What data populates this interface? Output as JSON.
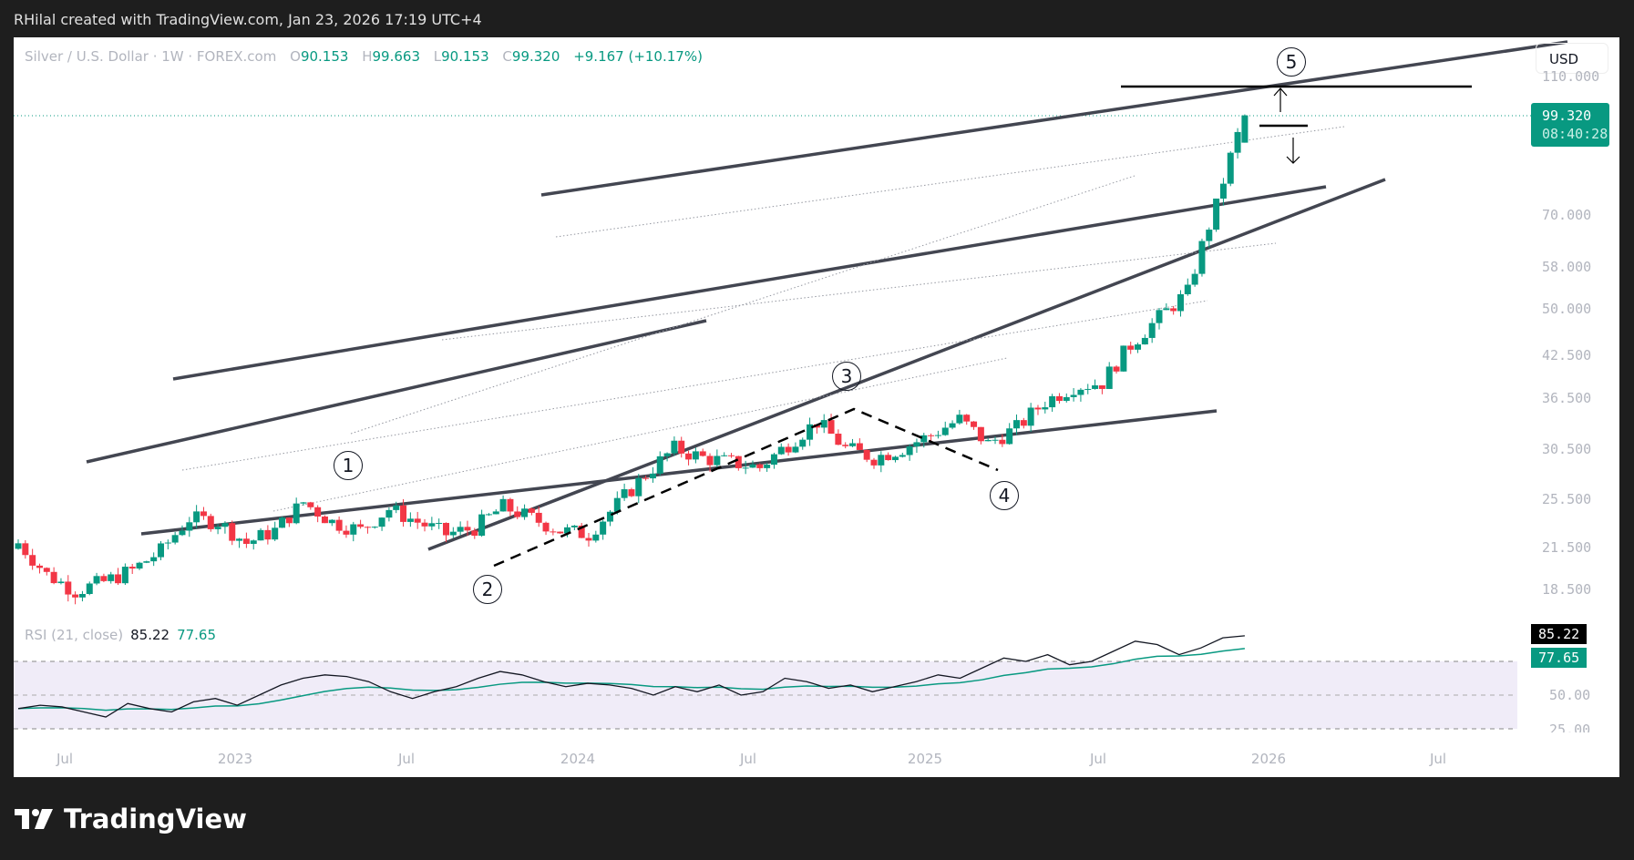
{
  "credit": "RHilal created with TradingView.com, Jan 23, 2026 17:19 UTC+4",
  "header": {
    "symbol": "Silver / U.S. Dollar · 1W · FOREX.com",
    "o_label": "O",
    "o": "90.153",
    "h_label": "H",
    "h": "99.663",
    "l_label": "L",
    "l": "90.153",
    "c_label": "C",
    "c": "99.320",
    "change": "+9.167 (+10.17%)"
  },
  "currency_button": "USD",
  "last_price": {
    "price": "99.320",
    "countdown": "08:40:28"
  },
  "price_axis": [
    "110.000",
    "70.000",
    "58.000",
    "50.000",
    "42.500",
    "36.500",
    "30.500",
    "25.500",
    "21.500",
    "18.500"
  ],
  "rsi": {
    "label": "RSI (21, close)",
    "value": "85.22",
    "ma": "77.65",
    "axis": [
      "50.00",
      "25.00"
    ]
  },
  "time_axis": [
    "Jul",
    "2023",
    "Jul",
    "2024",
    "Jul",
    "2025",
    "Jul",
    "2026",
    "Jul"
  ],
  "waves": [
    "1",
    "2",
    "3",
    "4",
    "5"
  ],
  "brand": "TradingView",
  "colors": {
    "up": "#089981",
    "down": "#f23645",
    "channel": "#434651",
    "rsi_line": "#131722",
    "rsi_ma": "#089981",
    "rsi_band": "#f0ecf8"
  },
  "chart_data": {
    "type": "candlestick",
    "title": "Silver / U.S. Dollar · 1W · FOREX.com",
    "xlabel": "",
    "ylabel": "USD",
    "scale": "log",
    "ylim": [
      16.5,
      118
    ],
    "x_ticks": [
      "Jul 2022",
      "2023",
      "Jul 2023",
      "2024",
      "Jul 2024",
      "2025",
      "Jul 2025",
      "2026",
      "Jul 2026"
    ],
    "y_ticks": [
      18.5,
      21.5,
      25.5,
      30.5,
      36.5,
      42.5,
      50,
      58,
      70,
      110
    ],
    "last_bar": {
      "open": 90.153,
      "high": 99.663,
      "low": 90.153,
      "close": 99.32,
      "change": 9.167,
      "change_pct": 10.17
    },
    "approx_weekly_closes": {
      "x": [
        "2022-06",
        "2022-07",
        "2022-08",
        "2022-09",
        "2022-10",
        "2022-11",
        "2022-12",
        "2023-01",
        "2023-02",
        "2023-03",
        "2023-04",
        "2023-05",
        "2023-06",
        "2023-07",
        "2023-08",
        "2023-09",
        "2023-10",
        "2023-11",
        "2023-12",
        "2024-01",
        "2024-02",
        "2024-03",
        "2024-04",
        "2024-05",
        "2024-06",
        "2024-07",
        "2024-08",
        "2024-09",
        "2024-10",
        "2024-11",
        "2024-12",
        "2025-01",
        "2025-02",
        "2025-03",
        "2025-04",
        "2025-05",
        "2025-06",
        "2025-07",
        "2025-08",
        "2025-09",
        "2025-10",
        "2025-11",
        "2025-12",
        "2026-01"
      ],
      "values": [
        21.8,
        19.5,
        18.4,
        19.0,
        19.8,
        21.2,
        23.8,
        23.5,
        21.8,
        22.8,
        25.2,
        23.5,
        22.8,
        24.6,
        23.5,
        22.5,
        23.0,
        24.8,
        23.8,
        22.8,
        22.5,
        25.0,
        27.8,
        30.5,
        29.5,
        29.0,
        28.5,
        31.0,
        33.5,
        30.5,
        29.5,
        30.5,
        32.0,
        33.8,
        31.0,
        32.8,
        36.0,
        38.0,
        38.5,
        44.0,
        48.5,
        53.0,
        72.0,
        99.32
      ]
    },
    "annotations": {
      "elliott_waves": [
        {
          "label": "1",
          "date": "2023-04",
          "price": 26.1
        },
        {
          "label": "2",
          "date": "2023-10",
          "price": 20.7
        },
        {
          "label": "3",
          "date": "2024-10",
          "price": 34.8
        },
        {
          "label": "4",
          "date": "2025-04",
          "price": 28.3
        },
        {
          "label": "5",
          "date": "2026-01",
          "price": 110.0
        }
      ],
      "channel": "ascending parallel channel set (5 solid lines with dotted midlines)",
      "target_line": 110.0,
      "support_marker": 92.0
    },
    "rsi": {
      "period": 21,
      "value": 85.22,
      "ma_value": 77.65,
      "bands": [
        30,
        50,
        70
      ],
      "ylim": [
        20,
        95
      ]
    }
  }
}
